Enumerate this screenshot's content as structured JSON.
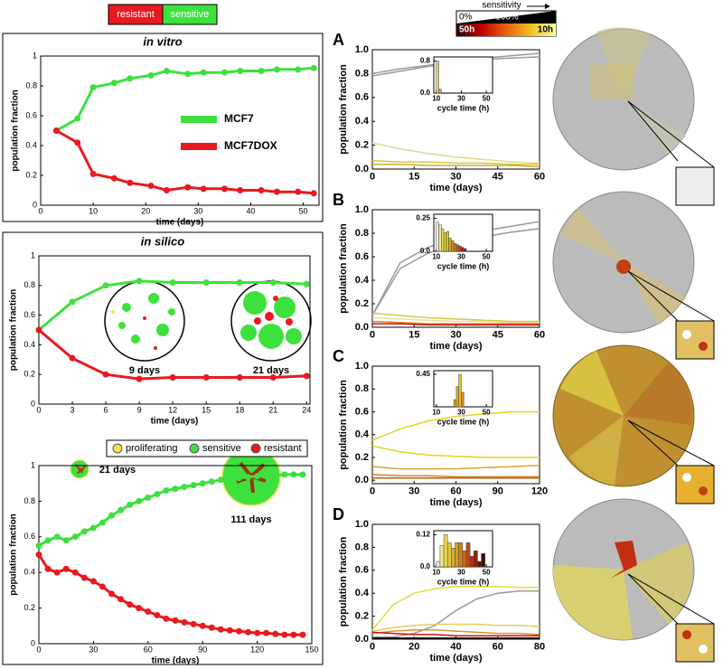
{
  "legend_bar": [
    {
      "label": "resistant",
      "color": "#e8191f"
    },
    {
      "label": "sensitive",
      "color": "#3de13d"
    }
  ],
  "colorbar": {
    "title": "sensitivity",
    "top_left": "0%",
    "top_right": "100%",
    "bottom_left": "50h",
    "bottom_right": "10h"
  },
  "chart_data": [
    {
      "type": "line",
      "title": "in vitro",
      "xlabel": "time (days)",
      "ylabel": "population fraction",
      "xlim": [
        0,
        53
      ],
      "xticks": [
        0,
        10,
        20,
        30,
        40,
        50
      ],
      "ylim": [
        0,
        1
      ],
      "yticks": [
        0,
        0.2,
        0.4,
        0.6,
        0.8,
        1
      ],
      "markers": true,
      "x": [
        3,
        7,
        10,
        14,
        17,
        21,
        24,
        28,
        31,
        35,
        38,
        42,
        45,
        49,
        52
      ],
      "series": [
        {
          "name": "MCF7",
          "color": "#3de13d",
          "values": [
            0.5,
            0.58,
            0.79,
            0.82,
            0.85,
            0.87,
            0.9,
            0.88,
            0.89,
            0.89,
            0.9,
            0.9,
            0.91,
            0.91,
            0.92
          ]
        },
        {
          "name": "MCF7DOX",
          "color": "#e8191f",
          "values": [
            0.5,
            0.42,
            0.21,
            0.18,
            0.15,
            0.13,
            0.1,
            0.12,
            0.11,
            0.11,
            0.1,
            0.1,
            0.09,
            0.09,
            0.08
          ]
        }
      ]
    },
    {
      "type": "line",
      "title": "in silico",
      "xlabel": "time (days)",
      "ylabel": "population fraction",
      "xlim": [
        0,
        24.3
      ],
      "xticks": [
        0,
        3,
        6,
        9,
        12,
        15,
        18,
        21,
        24
      ],
      "ylim": [
        0,
        1
      ],
      "yticks": [
        0,
        0.2,
        0.4,
        0.6,
        0.8,
        1
      ],
      "markers": true,
      "x": [
        0,
        3,
        6,
        9,
        12,
        15,
        18,
        21,
        24
      ],
      "annotations": [
        "9 days",
        "21 days"
      ],
      "series": [
        {
          "color": "#3de13d",
          "values": [
            0.5,
            0.69,
            0.8,
            0.83,
            0.82,
            0.82,
            0.82,
            0.82,
            0.81
          ]
        },
        {
          "color": "#e8191f",
          "values": [
            0.5,
            0.31,
            0.2,
            0.17,
            0.18,
            0.18,
            0.18,
            0.18,
            0.19
          ]
        }
      ]
    },
    {
      "type": "line",
      "xlabel": "time (days)",
      "ylabel": "population fraction",
      "xlim": [
        0,
        150
      ],
      "xticks": [
        0,
        30,
        60,
        90,
        120,
        150
      ],
      "ylim": [
        0,
        1
      ],
      "yticks": [
        0,
        0.2,
        0.4,
        0.6,
        0.8,
        1
      ],
      "markers": true,
      "legend": [
        {
          "name": "proliferating",
          "color": "#f5e050"
        },
        {
          "name": "sensitive",
          "color": "#3de13d"
        },
        {
          "name": "resistant",
          "color": "#e8191f"
        }
      ],
      "annotations": [
        "21 days",
        "111 days"
      ],
      "x": [
        0,
        5,
        10,
        15,
        20,
        25,
        30,
        35,
        40,
        45,
        50,
        55,
        60,
        65,
        70,
        75,
        80,
        85,
        90,
        95,
        100,
        105,
        110,
        115,
        120,
        125,
        130,
        135,
        140,
        145
      ],
      "series": [
        {
          "color": "#3de13d",
          "values": [
            0.55,
            0.58,
            0.6,
            0.58,
            0.6,
            0.63,
            0.65,
            0.68,
            0.72,
            0.75,
            0.78,
            0.8,
            0.82,
            0.84,
            0.86,
            0.87,
            0.88,
            0.89,
            0.9,
            0.91,
            0.92,
            0.925,
            0.93,
            0.935,
            0.94,
            0.94,
            0.945,
            0.95,
            0.95,
            0.95
          ]
        },
        {
          "color": "#e8191f",
          "values": [
            0.5,
            0.42,
            0.4,
            0.42,
            0.4,
            0.37,
            0.35,
            0.32,
            0.28,
            0.25,
            0.22,
            0.2,
            0.18,
            0.16,
            0.14,
            0.13,
            0.12,
            0.11,
            0.1,
            0.09,
            0.08,
            0.075,
            0.07,
            0.065,
            0.06,
            0.06,
            0.055,
            0.05,
            0.05,
            0.05
          ]
        }
      ]
    },
    {
      "type": "line",
      "panel": "A",
      "xlabel": "time (days)",
      "ylabel": "population fraction",
      "xlim": [
        0,
        60
      ],
      "xticks": [
        0,
        15,
        30,
        45,
        60
      ],
      "ylim": [
        0,
        1
      ],
      "yticks": [
        {
          "value": 0,
          "label": "0.0"
        },
        0.2,
        0.4,
        0.6,
        0.8,
        {
          "value": 1,
          "label": "1.0"
        }
      ],
      "x": [
        0,
        10,
        20,
        30,
        40,
        50,
        60
      ],
      "series": [
        {
          "color": "#999999",
          "values": [
            0.78,
            0.82,
            0.86,
            0.9,
            0.93,
            0.95,
            0.97
          ]
        },
        {
          "color": "#999999",
          "values": [
            0.8,
            0.84,
            0.87,
            0.9,
            0.92,
            0.93,
            0.94
          ]
        },
        {
          "color": "#e2d890",
          "values": [
            0.22,
            0.17,
            0.13,
            0.1,
            0.08,
            0.06,
            0.05
          ]
        },
        {
          "color": "#d8c840",
          "values": [
            0.07,
            0.06,
            0.06,
            0.05,
            0.05,
            0.04,
            0.04
          ]
        },
        {
          "color": "#c8b030",
          "values": [
            0.04,
            0.04,
            0.03,
            0.03,
            0.03,
            0.03,
            0.02
          ]
        }
      ],
      "inset": {
        "xlabel": "cycle time (h)",
        "xlim": [
          8,
          55
        ],
        "xticks": [
          10,
          30,
          50
        ],
        "ylim": [
          0,
          0.9
        ],
        "yticks": [
          {
            "value": 0,
            "label": "0.0"
          },
          0.8
        ],
        "bins": [
          10,
          12,
          14
        ],
        "values": [
          0.8,
          0.1
        ],
        "colors": [
          "#d8cc70",
          "#c8b040"
        ]
      }
    },
    {
      "type": "line",
      "panel": "B",
      "xlabel": "time (days)",
      "ylabel": "population fraction",
      "xlim": [
        0,
        60
      ],
      "xticks": [
        0,
        15,
        30,
        45,
        60
      ],
      "ylim": [
        0,
        1
      ],
      "yticks": [
        {
          "value": 0,
          "label": "0.0"
        },
        0.2,
        0.4,
        0.6,
        0.8,
        {
          "value": 1,
          "label": "1.0"
        }
      ],
      "x": [
        0,
        10,
        20,
        30,
        40,
        50,
        60
      ],
      "series": [
        {
          "color": "#999999",
          "values": [
            0.1,
            0.55,
            0.68,
            0.76,
            0.82,
            0.86,
            0.9
          ]
        },
        {
          "color": "#999999",
          "values": [
            0.1,
            0.5,
            0.63,
            0.71,
            0.77,
            0.81,
            0.84
          ]
        },
        {
          "color": "#d8c840",
          "values": [
            0.12,
            0.1,
            0.08,
            0.07,
            0.06,
            0.05,
            0.05
          ]
        },
        {
          "color": "#e8e0a0",
          "values": [
            0.08,
            0.07,
            0.06,
            0.05,
            0.05,
            0.04,
            0.04
          ]
        },
        {
          "color": "#e08020",
          "values": [
            0.05,
            0.04,
            0.03,
            0.03,
            0.03,
            0.03,
            0.03
          ]
        },
        {
          "color": "#cc1010",
          "values": [
            0.03,
            0.03,
            0.02,
            0.02,
            0.02,
            0.02,
            0.02
          ]
        }
      ],
      "inset": {
        "xlabel": "cycle time (h)",
        "xlim": [
          8,
          55
        ],
        "xticks": [
          10,
          30,
          50
        ],
        "ylim": [
          0,
          0.28
        ],
        "yticks": [
          {
            "value": 0,
            "label": "0.0"
          },
          0.25
        ],
        "bins": [
          10,
          12,
          14,
          16,
          18,
          20,
          22,
          24,
          26,
          28,
          30,
          32,
          34
        ],
        "values": [
          0.22,
          0.2,
          0.17,
          0.14,
          0.15,
          0.1,
          0.08,
          0.06,
          0.05,
          0.04,
          0.03,
          0.02
        ],
        "colors": [
          "#eeeeee",
          "#f0e890",
          "#e8d860",
          "#e0cc40",
          "#d8c030",
          "#d0a828",
          "#d09020",
          "#d07818",
          "#c85810",
          "#c04010",
          "#a82808",
          "#801808"
        ]
      }
    },
    {
      "type": "line",
      "panel": "C",
      "xlabel": "time (days)",
      "ylabel": "population fraction",
      "xlim": [
        0,
        120
      ],
      "xticks": [
        0,
        30,
        60,
        90,
        120
      ],
      "ylim": [
        -0.03,
        1
      ],
      "yticks": [
        {
          "value": 0,
          "label": "0.0"
        },
        0.2,
        0.4,
        0.6,
        0.8,
        {
          "value": 1,
          "label": "1.0"
        }
      ],
      "x": [
        0,
        20,
        40,
        60,
        80,
        100,
        120
      ],
      "series": [
        {
          "color": "#e8d020",
          "values": [
            0.35,
            0.45,
            0.52,
            0.56,
            0.58,
            0.6,
            0.6
          ]
        },
        {
          "color": "#e8d020",
          "values": [
            0.3,
            0.25,
            0.22,
            0.21,
            0.2,
            0.2,
            0.2
          ]
        },
        {
          "color": "#e0a030",
          "values": [
            0.12,
            0.1,
            0.1,
            0.1,
            0.11,
            0.12,
            0.13
          ]
        },
        {
          "color": "#d88020",
          "values": [
            0.05,
            0.04,
            0.04,
            0.03,
            0.03,
            0.03,
            0.03
          ]
        },
        {
          "color": "#c06010",
          "values": [
            0.02,
            0.02,
            0.02,
            0.02,
            0.02,
            0.02,
            0.02
          ]
        }
      ],
      "inset": {
        "xlabel": "cycle time (h)",
        "xlim": [
          8,
          55
        ],
        "xticks": [
          10,
          30,
          50
        ],
        "ylim": [
          0,
          0.5
        ],
        "yticks": [
          0.45
        ],
        "bins": [
          24,
          26,
          28,
          30,
          32
        ],
        "values": [
          0.1,
          0.28,
          0.45,
          0.2
        ],
        "colors": [
          "#d8a020",
          "#e0b020",
          "#e8c020",
          "#d89020"
        ]
      }
    },
    {
      "type": "line",
      "panel": "D",
      "xlabel": "time (days)",
      "ylabel": "population fraction",
      "xlim": [
        0,
        80
      ],
      "xticks": [
        0,
        20,
        40,
        60,
        80
      ],
      "ylim": [
        0,
        1
      ],
      "yticks": [
        {
          "value": 0,
          "label": "0.0"
        },
        0.2,
        0.4,
        0.6,
        0.8,
        {
          "value": 1,
          "label": "1.0"
        }
      ],
      "x": [
        0,
        10,
        20,
        30,
        40,
        50,
        60,
        70,
        80
      ],
      "series": [
        {
          "color": "#e8d840",
          "values": [
            0.08,
            0.3,
            0.4,
            0.44,
            0.46,
            0.46,
            0.46,
            0.45,
            0.45
          ]
        },
        {
          "color": "#999999",
          "values": [
            0.02,
            0.02,
            0.05,
            0.12,
            0.25,
            0.35,
            0.4,
            0.42,
            0.42
          ]
        },
        {
          "color": "#e0d060",
          "values": [
            0.07,
            0.1,
            0.12,
            0.13,
            0.13,
            0.13,
            0.12,
            0.12,
            0.11
          ]
        },
        {
          "color": "#e09030",
          "values": [
            0.05,
            0.07,
            0.08,
            0.08,
            0.07,
            0.06,
            0.05,
            0.05,
            0.04
          ]
        },
        {
          "color": "#cc1010",
          "values": [
            0.06,
            0.05,
            0.04,
            0.04,
            0.03,
            0.03,
            0.03,
            0.03,
            0.03
          ]
        },
        {
          "color": "#111111",
          "values": [
            0.01,
            0.01,
            0.01,
            0.01,
            0.01,
            0.01,
            0.01,
            0.01,
            0.01
          ]
        }
      ],
      "inset": {
        "xlabel": "cycle time (h)",
        "xlim": [
          8,
          55
        ],
        "xticks": [
          10,
          30,
          50
        ],
        "ylim": [
          0,
          0.135
        ],
        "yticks": [
          {
            "value": 0,
            "label": "0.0"
          },
          0.12
        ],
        "bins": [
          10,
          13,
          16,
          19,
          22,
          25,
          28,
          31,
          34,
          37,
          40,
          43,
          46,
          49
        ],
        "values": [
          0.02,
          0.08,
          0.12,
          0.09,
          0.07,
          0.09,
          0.09,
          0.06,
          0.09,
          0.04,
          0.06,
          0.02,
          0.05
        ],
        "colors": [
          "#eeeeee",
          "#f0e890",
          "#e8d850",
          "#e0c840",
          "#d8b030",
          "#d89a28",
          "#d08020",
          "#c86818",
          "#c04810",
          "#b03010",
          "#902008",
          "#601008",
          "#301008"
        ]
      }
    }
  ]
}
